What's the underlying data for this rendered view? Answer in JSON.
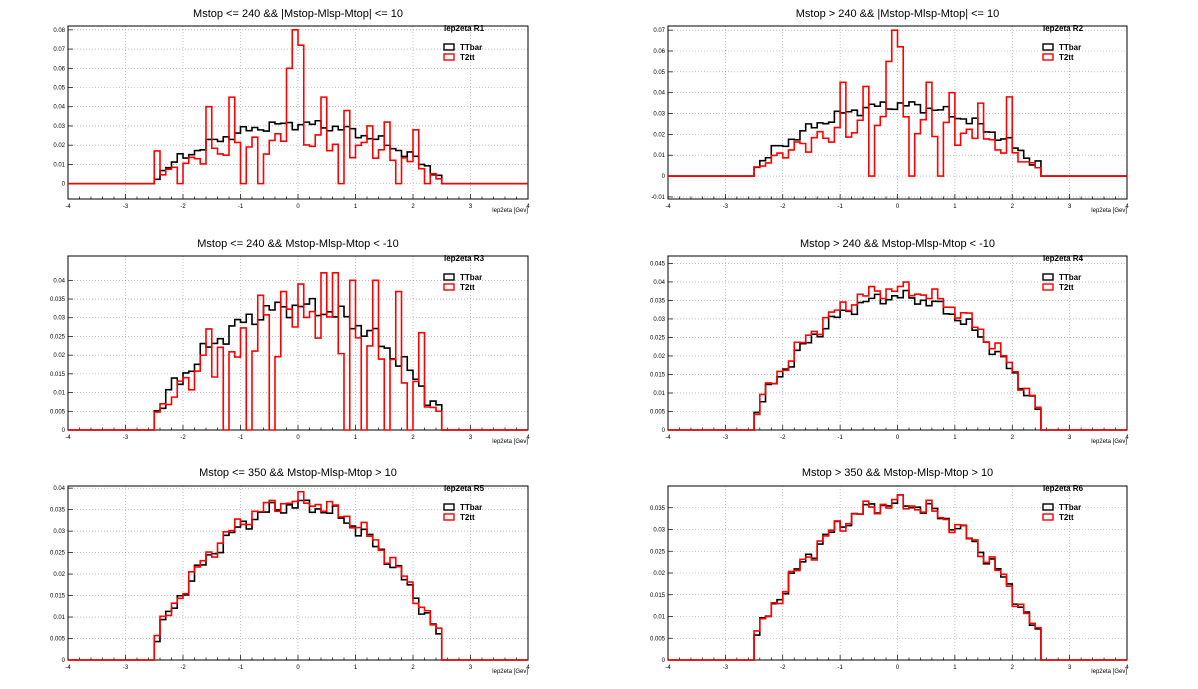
{
  "chart_data": [
    {
      "type": "histogram-step",
      "title": "Mstop <= 240 && |Mstop-Mlsp-Mtop| <= 10",
      "stats_label": "lep2eta  R1",
      "xlabel": "lep2eta [Gev]",
      "xlim": [
        -4,
        4
      ],
      "ylim": [
        -0.008,
        0.082
      ],
      "xticks": [
        "-4",
        "-3",
        "-2",
        "-1",
        "0",
        "1",
        "2",
        "3",
        "4"
      ],
      "yticks": [
        "0",
        "0.01",
        "0.02",
        "0.03",
        "0.04",
        "0.05",
        "0.06",
        "0.07",
        "0.08"
      ],
      "grid": true,
      "legend_position": "top-right",
      "series": [
        {
          "name": "TTbar",
          "color": "#000000"
        },
        {
          "name": "T2tt",
          "color": "#ff0000"
        }
      ]
    },
    {
      "type": "histogram-step",
      "title": "Mstop > 240 && |Mstop-Mlsp-Mtop| <= 10",
      "stats_label": "lep2eta  R2",
      "xlabel": "lep2eta [Gev]",
      "xlim": [
        -4,
        4
      ],
      "ylim": [
        -0.011,
        0.072
      ],
      "xticks": [
        "-4",
        "-3",
        "-2",
        "-1",
        "0",
        "1",
        "2",
        "3",
        "4"
      ],
      "yticks": [
        "-0.01",
        "0",
        "0.01",
        "0.02",
        "0.03",
        "0.04",
        "0.05",
        "0.06",
        "0.07"
      ],
      "grid": true,
      "legend_position": "top-right",
      "series": [
        {
          "name": "TTbar",
          "color": "#000000"
        },
        {
          "name": "T2tt",
          "color": "#ff0000"
        }
      ]
    },
    {
      "type": "histogram-step",
      "title": "Mstop <= 240 && Mstop-Mlsp-Mtop < -10",
      "stats_label": "lep2eta  R3",
      "xlabel": "lep2eta [Gev]",
      "xlim": [
        -4,
        4
      ],
      "ylim": [
        0,
        0.0465
      ],
      "xticks": [
        "-4",
        "-3",
        "-2",
        "-1",
        "0",
        "1",
        "2",
        "3",
        "4"
      ],
      "yticks": [
        "0",
        "0.005",
        "0.01",
        "0.015",
        "0.02",
        "0.025",
        "0.03",
        "0.035",
        "0.04"
      ],
      "grid": true,
      "legend_position": "top-right",
      "series": [
        {
          "name": "TTbar",
          "color": "#000000"
        },
        {
          "name": "T2tt",
          "color": "#ff0000"
        }
      ]
    },
    {
      "type": "histogram-step",
      "title": "Mstop > 240 && Mstop-Mlsp-Mtop < -10",
      "stats_label": "lep2eta  R4",
      "xlabel": "lep2eta [Gev]",
      "xlim": [
        -4,
        4
      ],
      "ylim": [
        0,
        0.047
      ],
      "xticks": [
        "-4",
        "-3",
        "-2",
        "-1",
        "0",
        "1",
        "2",
        "3",
        "4"
      ],
      "yticks": [
        "0",
        "0.005",
        "0.01",
        "0.015",
        "0.02",
        "0.025",
        "0.03",
        "0.035",
        "0.04",
        "0.045"
      ],
      "grid": true,
      "legend_position": "top-right",
      "series": [
        {
          "name": "TTbar",
          "color": "#000000"
        },
        {
          "name": "T2tt",
          "color": "#ff0000"
        }
      ]
    },
    {
      "type": "histogram-step",
      "title": "Mstop <= 350 && Mstop-Mlsp-Mtop > 10",
      "stats_label": "lep2eta  R5",
      "xlabel": "lep2eta [Gev]",
      "xlim": [
        -4,
        4
      ],
      "ylim": [
        0,
        0.0405
      ],
      "xticks": [
        "-4",
        "-3",
        "-2",
        "-1",
        "0",
        "1",
        "2",
        "3",
        "4"
      ],
      "yticks": [
        "0",
        "0.005",
        "0.01",
        "0.015",
        "0.02",
        "0.025",
        "0.03",
        "0.035",
        "0.04"
      ],
      "grid": true,
      "legend_position": "top-right",
      "series": [
        {
          "name": "TTbar",
          "color": "#000000"
        },
        {
          "name": "T2tt",
          "color": "#ff0000"
        }
      ]
    },
    {
      "type": "histogram-step",
      "title": "Mstop > 350 && Mstop-Mlsp-Mtop > 10",
      "stats_label": "lep2eta  R6",
      "xlabel": "lep2eta [Gev]",
      "xlim": [
        -4,
        4
      ],
      "ylim": [
        0,
        0.04
      ],
      "xticks": [
        "-4",
        "-3",
        "-2",
        "-1",
        "0",
        "1",
        "2",
        "3",
        "4"
      ],
      "yticks": [
        "0",
        "0.005",
        "0.01",
        "0.015",
        "0.02",
        "0.025",
        "0.03",
        "0.035"
      ],
      "grid": true,
      "legend_position": "top-right",
      "series": [
        {
          "name": "TTbar",
          "color": "#000000"
        },
        {
          "name": "T2tt",
          "color": "#ff0000"
        }
      ]
    }
  ]
}
